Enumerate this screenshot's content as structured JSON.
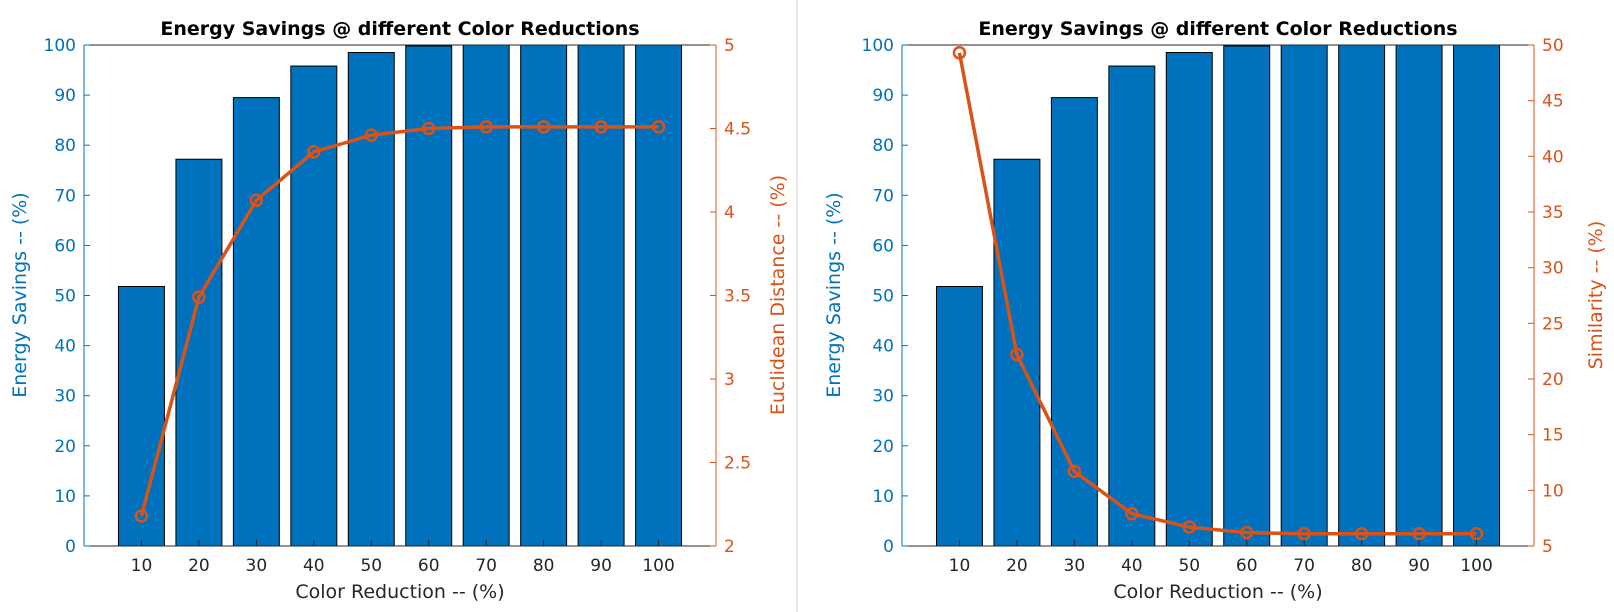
{
  "colors": {
    "bar": "#0072BD",
    "line": "#D95319",
    "left_axis": "#0072BD",
    "right_axis": "#D95319",
    "frame": "#262626",
    "text": "#000000"
  },
  "chart_data": [
    {
      "type": "bar",
      "title": "Energy Savings @ different Color Reductions",
      "xlabel": "Color Reduction -- (%)",
      "categories": [
        "10",
        "20",
        "30",
        "40",
        "50",
        "60",
        "70",
        "80",
        "90",
        "100"
      ],
      "xlim": [
        0,
        110
      ],
      "ylabel_left": "Energy Savings -- (%)",
      "ylim_left": [
        0,
        100
      ],
      "yticks_left": [
        0,
        10,
        20,
        30,
        40,
        50,
        60,
        70,
        80,
        90,
        100
      ],
      "ylabel_right": "Euclidean Distance -- (%)",
      "ylim_right": [
        2,
        5
      ],
      "yticks_right": [
        "2",
        "2.5",
        "3",
        "3.5",
        "4",
        "4.5",
        "5"
      ],
      "grid": false,
      "legend": "none",
      "series": [
        {
          "kind": "bar",
          "axis": "left",
          "x": [
            10,
            20,
            30,
            40,
            50,
            60,
            70,
            80,
            90,
            100
          ],
          "values": [
            51.8,
            77.2,
            89.5,
            95.8,
            98.5,
            99.8,
            100,
            100,
            100,
            100
          ]
        },
        {
          "kind": "line",
          "axis": "right",
          "marker": "circle",
          "x": [
            10,
            20,
            30,
            40,
            50,
            60,
            70,
            80,
            90,
            100
          ],
          "values": [
            2.18,
            3.49,
            4.07,
            4.36,
            4.46,
            4.5,
            4.51,
            4.51,
            4.51,
            4.51
          ]
        }
      ]
    },
    {
      "type": "bar",
      "title": "Energy Savings @ different Color Reductions",
      "xlabel": "Color Reduction -- (%)",
      "categories": [
        "10",
        "20",
        "30",
        "40",
        "50",
        "60",
        "70",
        "80",
        "90",
        "100"
      ],
      "xlim": [
        0,
        110
      ],
      "ylabel_left": "Energy Savings -- (%)",
      "ylim_left": [
        0,
        100
      ],
      "yticks_left": [
        0,
        10,
        20,
        30,
        40,
        50,
        60,
        70,
        80,
        90,
        100
      ],
      "ylabel_right": "Similarity -- (%)",
      "ylim_right": [
        5,
        50
      ],
      "yticks_right": [
        "5",
        "10",
        "15",
        "20",
        "25",
        "30",
        "35",
        "40",
        "45",
        "50"
      ],
      "grid": false,
      "legend": "none",
      "series": [
        {
          "kind": "bar",
          "axis": "left",
          "x": [
            10,
            20,
            30,
            40,
            50,
            60,
            70,
            80,
            90,
            100
          ],
          "values": [
            51.8,
            77.2,
            89.5,
            95.8,
            98.5,
            99.8,
            100,
            100,
            100,
            100
          ]
        },
        {
          "kind": "line",
          "axis": "right",
          "marker": "circle",
          "x": [
            10,
            20,
            30,
            40,
            50,
            60,
            70,
            80,
            90,
            100
          ],
          "values": [
            49.3,
            22.2,
            11.7,
            7.9,
            6.7,
            6.2,
            6.1,
            6.1,
            6.1,
            6.1
          ]
        }
      ]
    }
  ]
}
